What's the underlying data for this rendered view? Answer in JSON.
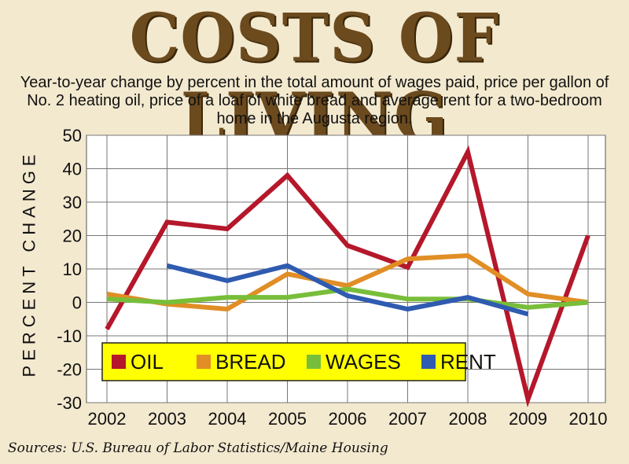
{
  "title": "COSTS OF LIVING",
  "subtitle": "Year-to-year change by percent in the total amount of wages paid, price per gallon of No. 2 heating oil, price of a loaf of white bread and average rent for a two-bedroom home in the Augusta region.",
  "source": "Sources: U.S. Bureau of Labor Statistics/Maine Housing",
  "chart_data": {
    "type": "line",
    "ylabel": "PERCENT CHANGE",
    "xlabel": "",
    "ylim": [
      -30,
      50
    ],
    "yticks": [
      50,
      40,
      30,
      20,
      10,
      0,
      -10,
      -20,
      -30
    ],
    "x": [
      2002,
      2003,
      2004,
      2005,
      2006,
      2007,
      2008,
      2009,
      2010
    ],
    "grid": true,
    "legend_position": "bottom-left",
    "background": "#ffffff",
    "legend_background": "#ffff00",
    "series": [
      {
        "name": "OIL",
        "color": "#b5172b",
        "values": [
          -8,
          24,
          22,
          38,
          17,
          10.5,
          45,
          -29,
          20
        ]
      },
      {
        "name": "BREAD",
        "color": "#e08e25",
        "values": [
          2.5,
          -0.5,
          -2,
          8.5,
          5,
          13,
          14,
          2.5,
          0
        ]
      },
      {
        "name": "WAGES",
        "color": "#78be3a",
        "values": [
          1,
          0,
          1.5,
          1.5,
          4,
          1,
          1,
          -1.5,
          0
        ]
      },
      {
        "name": "RENT",
        "color": "#2f5bb0",
        "values": [
          null,
          11,
          6.5,
          11,
          2,
          -2,
          1.5,
          -3.5,
          null
        ]
      }
    ]
  }
}
